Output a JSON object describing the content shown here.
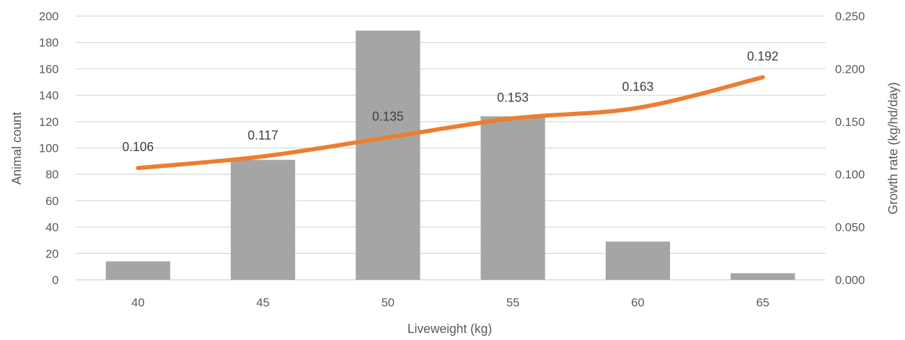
{
  "chart_data": {
    "type": "bar",
    "categories": [
      "40",
      "45",
      "50",
      "55",
      "60",
      "65"
    ],
    "series": [
      {
        "type": "bar",
        "axis": "left",
        "values": [
          14,
          91,
          189,
          124,
          29,
          5
        ],
        "color": "#a5a5a5"
      },
      {
        "type": "line",
        "axis": "right",
        "values": [
          0.106,
          0.117,
          0.135,
          0.153,
          0.163,
          0.192
        ],
        "data_labels": [
          "0.106",
          "0.117",
          "0.135",
          "0.153",
          "0.163",
          "0.192"
        ],
        "color": "#ed7d31"
      }
    ],
    "xlabel": "Liveweight (kg)",
    "ylabel": "Animal count",
    "y2label": "Growth rate (kg/hd/day)",
    "ylim": [
      0,
      200
    ],
    "y2lim": [
      0,
      0.25
    ],
    "yticks": [
      "0",
      "20",
      "40",
      "60",
      "80",
      "100",
      "120",
      "140",
      "160",
      "180",
      "200"
    ],
    "y2ticks": [
      "0.000",
      "0.050",
      "0.100",
      "0.150",
      "0.200",
      "0.250"
    ],
    "grid": true,
    "legend": "none"
  }
}
